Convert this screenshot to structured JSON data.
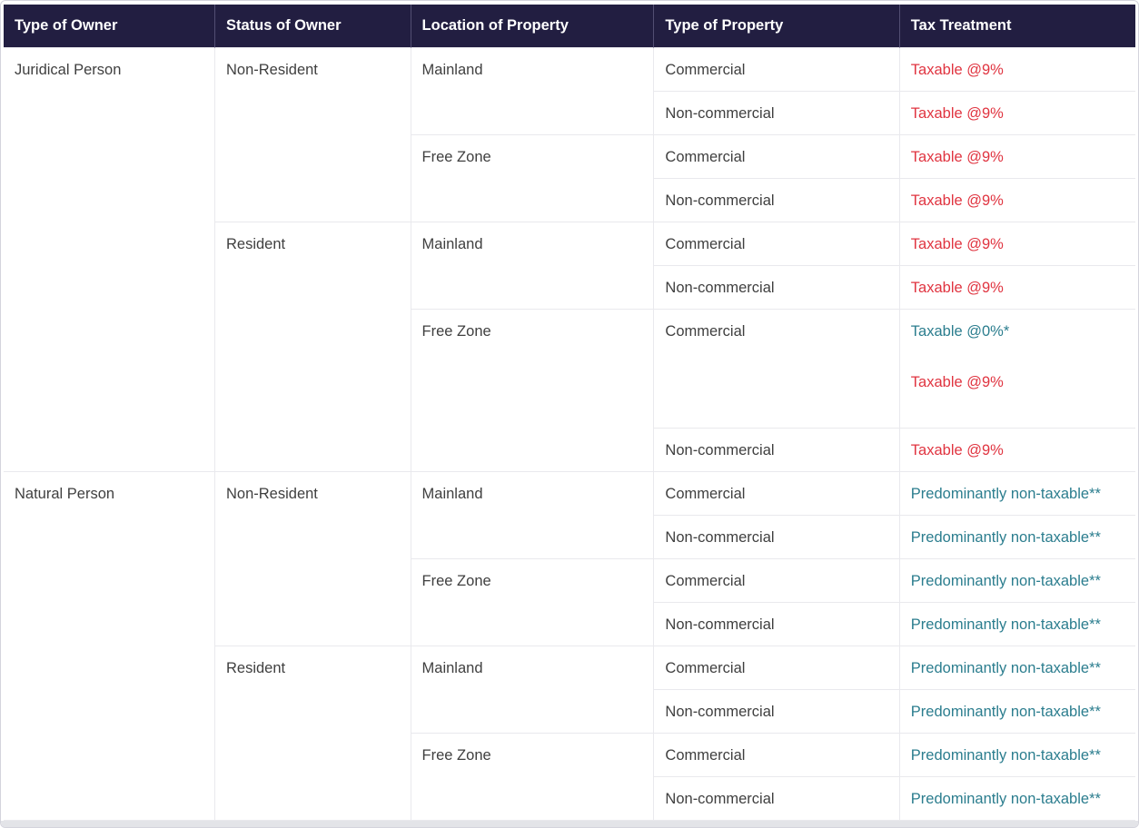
{
  "colors": {
    "header_bg": "#221e41",
    "header_text": "#ffffff",
    "red": "#e03440",
    "teal": "#2b7d8e",
    "text": "#3f3f3f",
    "border": "#e9e9ed",
    "header_divider": "#524e72",
    "page_border": "#d4d4dc",
    "strip": "#e3e4e8"
  },
  "table": {
    "headers": [
      "Type of Owner",
      "Status of Owner",
      "Location of Property",
      "Type of Property",
      "Tax Treatment"
    ],
    "rows": [
      {
        "owner": "Juridical Person",
        "status": "Non-Resident",
        "location": "Mainland",
        "property": "Commercial",
        "treatment": "Taxable @9%"
      },
      {
        "property": "Non-commercial",
        "treatment": "Taxable @9%"
      },
      {
        "location": "Free Zone",
        "property": "Commercial",
        "treatment": "Taxable @9%"
      },
      {
        "property": "Non-commercial",
        "treatment": "Taxable @9%"
      },
      {
        "status": "Resident",
        "location": "Mainland",
        "property": "Commercial",
        "treatment": "Taxable @9%"
      },
      {
        "property": "Non-commercial",
        "treatment": "Taxable @9%"
      },
      {
        "location": "Free Zone",
        "property": "Commercial",
        "treatment": "Taxable @0%*",
        "treatment2": "Taxable @9%"
      },
      {
        "property": "Non-commercial",
        "treatment": "Taxable @9%"
      },
      {
        "owner": "Natural Person",
        "status": "Non-Resident",
        "location": "Mainland",
        "property": "Commercial",
        "treatment": "Predominantly non-taxable**"
      },
      {
        "property": "Non-commercial",
        "treatment": "Predominantly non-taxable**"
      },
      {
        "location": "Free Zone",
        "property": "Commercial",
        "treatment": "Predominantly non-taxable**"
      },
      {
        "property": "Non-commercial",
        "treatment": "Predominantly non-taxable**"
      },
      {
        "status": "Resident",
        "location": "Mainland",
        "property": "Commercial",
        "treatment": "Predominantly non-taxable**"
      },
      {
        "property": "Non-commercial",
        "treatment": "Predominantly non-taxable**"
      },
      {
        "location": "Free Zone",
        "property": "Commercial",
        "treatment": "Predominantly non-taxable**"
      },
      {
        "property": "Non-commercial",
        "treatment": "Predominantly non-taxable**"
      }
    ]
  }
}
